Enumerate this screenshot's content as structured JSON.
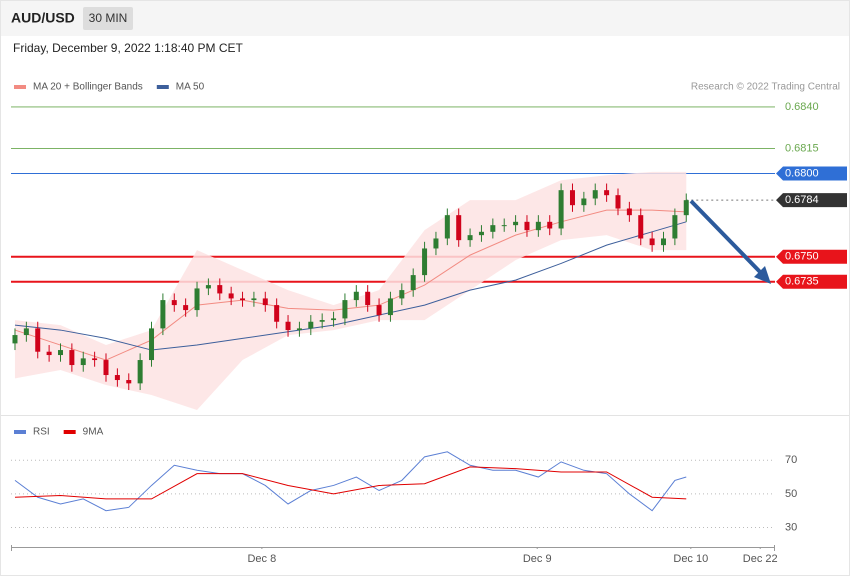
{
  "header": {
    "symbol": "AUD/USD",
    "timeframe": "30 MIN",
    "timestamp": "Friday, December 9, 2022 1:18:40 PM CET"
  },
  "chart_data": [
    {
      "type": "candlestick",
      "annotation": "Research © 2022 Trading Central",
      "up_color": "#2e7d32",
      "down_color": "#d0021b",
      "band_color": "#fde3e3",
      "xlim": [
        -0.35,
        66.8
      ],
      "ylim": [
        0.6655,
        0.688
      ],
      "open": [
        0.6698,
        0.6703,
        0.6707,
        0.6693,
        0.6691,
        0.6694,
        0.6685,
        0.6689,
        0.6688,
        0.6679,
        0.6676,
        0.6674,
        0.6688,
        0.6707,
        0.6724,
        0.6721,
        0.6718,
        0.6731,
        0.6733,
        0.6728,
        0.6725,
        0.6724,
        0.6725,
        0.6721,
        0.6711,
        0.6706,
        0.6707,
        0.6711,
        0.6712,
        0.6713,
        0.6724,
        0.6729,
        0.6721,
        0.6715,
        0.6725,
        0.673,
        0.6739,
        0.6755,
        0.6761,
        0.6775,
        0.676,
        0.6763,
        0.6765,
        0.6769,
        0.6769,
        0.6771,
        0.6766,
        0.6771,
        0.6767,
        0.679,
        0.6781,
        0.6785,
        0.679,
        0.6787,
        0.6779,
        0.6775,
        0.6761,
        0.6757,
        0.6761,
        0.6775
      ],
      "high": [
        0.6707,
        0.6711,
        0.6711,
        0.6697,
        0.6698,
        0.6698,
        0.6693,
        0.6693,
        0.6692,
        0.6683,
        0.668,
        0.6692,
        0.6711,
        0.6728,
        0.6728,
        0.6725,
        0.6735,
        0.6737,
        0.6737,
        0.6732,
        0.6729,
        0.6729,
        0.6729,
        0.6725,
        0.6715,
        0.6711,
        0.6715,
        0.6716,
        0.6717,
        0.6728,
        0.6733,
        0.6733,
        0.6725,
        0.6729,
        0.6734,
        0.6743,
        0.6759,
        0.6765,
        0.6779,
        0.6779,
        0.6767,
        0.6769,
        0.6773,
        0.6773,
        0.6775,
        0.6775,
        0.6775,
        0.6775,
        0.6794,
        0.6794,
        0.6789,
        0.6794,
        0.6794,
        0.6791,
        0.6783,
        0.6779,
        0.6765,
        0.6765,
        0.6779,
        0.6788
      ],
      "low": [
        0.6694,
        0.6699,
        0.6689,
        0.6687,
        0.6687,
        0.6681,
        0.6681,
        0.6684,
        0.6675,
        0.6672,
        0.667,
        0.667,
        0.6684,
        0.6703,
        0.6717,
        0.6714,
        0.6714,
        0.6727,
        0.6724,
        0.6721,
        0.672,
        0.672,
        0.6717,
        0.6707,
        0.6702,
        0.6702,
        0.6703,
        0.6707,
        0.6708,
        0.6709,
        0.672,
        0.6717,
        0.6711,
        0.6711,
        0.6721,
        0.6726,
        0.6735,
        0.6751,
        0.6757,
        0.6756,
        0.6756,
        0.6759,
        0.6761,
        0.6765,
        0.6765,
        0.6762,
        0.6762,
        0.6763,
        0.6763,
        0.6777,
        0.6777,
        0.6781,
        0.6783,
        0.6775,
        0.6771,
        0.6757,
        0.6753,
        0.6753,
        0.6757,
        0.6771
      ],
      "close": [
        0.6703,
        0.6707,
        0.6693,
        0.6691,
        0.6694,
        0.6685,
        0.6689,
        0.6688,
        0.6679,
        0.6676,
        0.6674,
        0.6688,
        0.6707,
        0.6724,
        0.6721,
        0.6718,
        0.6731,
        0.6733,
        0.6728,
        0.6725,
        0.6724,
        0.6725,
        0.6721,
        0.6711,
        0.6706,
        0.6707,
        0.6711,
        0.6712,
        0.6713,
        0.6724,
        0.6729,
        0.6721,
        0.6715,
        0.6725,
        0.673,
        0.6739,
        0.6755,
        0.6761,
        0.6775,
        0.676,
        0.6763,
        0.6765,
        0.6769,
        0.6769,
        0.6771,
        0.6766,
        0.6771,
        0.6767,
        0.679,
        0.6781,
        0.6785,
        0.679,
        0.6787,
        0.6779,
        0.6775,
        0.6761,
        0.6757,
        0.6761,
        0.6775,
        0.6784
      ],
      "indicator_x": [
        0,
        4,
        8,
        12,
        16,
        20,
        24,
        28,
        32,
        36,
        40,
        44,
        48,
        52,
        56,
        59
      ],
      "series": [
        {
          "name": "MA 20 + Bollinger Bands",
          "color": "#f28b82",
          "values": [
            0.6706,
            0.6697,
            0.6688,
            0.67,
            0.6721,
            0.6724,
            0.6719,
            0.6718,
            0.6721,
            0.6733,
            0.6751,
            0.6763,
            0.6771,
            0.6778,
            0.6778,
            0.6777
          ],
          "upper": [
            0.6712,
            0.6709,
            0.6697,
            0.6706,
            0.6754,
            0.6742,
            0.673,
            0.6721,
            0.673,
            0.6766,
            0.6784,
            0.6784,
            0.6796,
            0.6799,
            0.6801,
            0.6801
          ],
          "lower": [
            0.6677,
            0.6682,
            0.6673,
            0.6667,
            0.6658,
            0.6688,
            0.6703,
            0.6706,
            0.6712,
            0.6712,
            0.673,
            0.6748,
            0.676,
            0.6763,
            0.6754,
            0.6754
          ]
        },
        {
          "name": "MA 50",
          "color": "#3d5f9b",
          "values": [
            0.6709,
            0.6706,
            0.6701,
            0.6694,
            0.6697,
            0.6701,
            0.6705,
            0.6709,
            0.6715,
            0.6721,
            0.673,
            0.6736,
            0.6746,
            0.6757,
            0.6765,
            0.6771
          ]
        }
      ],
      "levels": [
        {
          "value": 0.684,
          "label": "0.6840",
          "color": "#6aa84f",
          "width": 0.8,
          "boxed": false
        },
        {
          "value": 0.6815,
          "label": "0.6815",
          "color": "#6aa84f",
          "width": 0.8,
          "boxed": false
        },
        {
          "value": 0.68,
          "label": "0.6800",
          "color": "#2f6fd6",
          "width": 1,
          "boxed": true
        },
        {
          "value": 0.6784,
          "label": "0.6784",
          "color": "#333333",
          "width": 1,
          "boxed": true,
          "dotted": true
        },
        {
          "value": 0.675,
          "label": "0.6750",
          "color": "#e8141b",
          "width": 2,
          "boxed": true
        },
        {
          "value": 0.6735,
          "label": "0.6735",
          "color": "#e8141b",
          "width": 2,
          "boxed": true
        }
      ]
    },
    {
      "type": "line",
      "xlim": [
        -0.35,
        66.8
      ],
      "ylim": [
        22,
        82
      ],
      "yticks": [
        70,
        50,
        30
      ],
      "grid": true,
      "xticks": [
        {
          "value": 21.7,
          "label": "Dec 8"
        },
        {
          "value": 45.9,
          "label": "Dec 9"
        },
        {
          "value": 59.4,
          "label": "Dec 10"
        },
        {
          "value": 65.5,
          "label": "Dec 22"
        }
      ],
      "series": [
        {
          "name": "RSI",
          "color": "#5b7fd4",
          "x": [
            0,
            2,
            4,
            6,
            8,
            10,
            12,
            14,
            16,
            18,
            20,
            22,
            24,
            26,
            28,
            30,
            32,
            34,
            36,
            38,
            40,
            42,
            44,
            46,
            48,
            50,
            52,
            54,
            56,
            58,
            59
          ],
          "values": [
            58,
            48,
            44,
            47,
            40,
            42,
            55,
            67,
            64,
            62,
            62,
            55,
            44,
            52,
            55,
            60,
            52,
            58,
            72,
            75,
            67,
            64,
            64,
            60,
            69,
            64,
            62,
            50,
            40,
            58,
            60
          ]
        },
        {
          "name": "9MA",
          "color": "#e00000",
          "x": [
            0,
            4,
            8,
            12,
            16,
            20,
            24,
            28,
            32,
            36,
            40,
            44,
            48,
            52,
            56,
            59
          ],
          "values": [
            48,
            49,
            47,
            47,
            62,
            62,
            55,
            50,
            55,
            56,
            66,
            65,
            63,
            63,
            48,
            47
          ]
        }
      ]
    }
  ]
}
